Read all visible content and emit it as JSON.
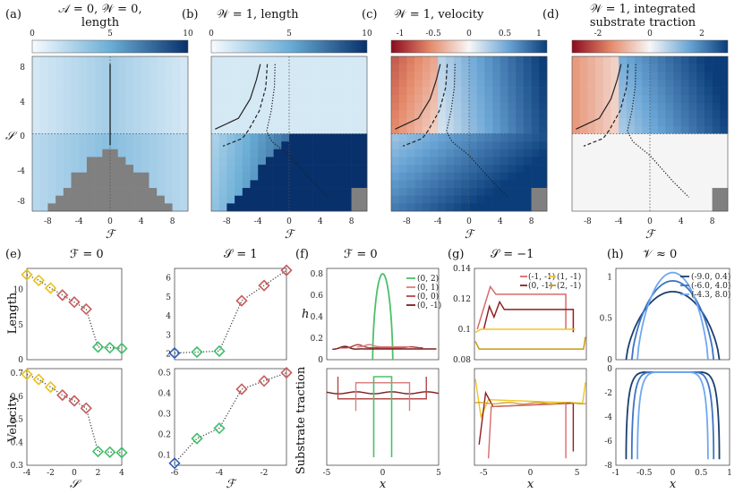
{
  "colors": {
    "blue_low": "#f7fbff",
    "blue_high": "#08306b",
    "red_high": "#67001f",
    "neutral": "#f5f5f5",
    "gray_region": "#808080",
    "yellow": "#e8c21a",
    "red": "#c95c5c",
    "green": "#3fbf6a",
    "blue": "#2f5fbf",
    "f_green": "#4cc06a",
    "f_red1": "#d98080",
    "f_red2": "#b34848",
    "f_red3": "#7a1e1e",
    "g_red1": "#d96a6a",
    "g_red2": "#8f1f1f",
    "g_yel1": "#f0c520",
    "g_yel2": "#c99a10",
    "h_1": "#1b3f6e",
    "h_2": "#3e74c4",
    "h_3": "#6fa8f0"
  },
  "chart_data": [
    {
      "id": "a",
      "type": "heatmap",
      "panel_label": "(a)",
      "title_lines": [
        "𝒜 = 0, 𝒲 = 0,",
        "length"
      ],
      "colorbar": {
        "min": 0,
        "max": 10,
        "ticks": [
          "0",
          "5",
          "10"
        ]
      },
      "xlabel": "ℱ",
      "ylabel": "𝒮",
      "xlim": [
        -10,
        10
      ],
      "ylim": [
        -10,
        10
      ],
      "xticks": [
        "-8",
        "-4",
        "0",
        "4",
        "8"
      ],
      "yticks": [
        "8",
        "4",
        "0",
        "-4",
        "-8"
      ]
    },
    {
      "id": "b",
      "type": "heatmap",
      "panel_label": "(b)",
      "title_lines": [
        "𝒲 = 1, length"
      ],
      "colorbar": {
        "min": 0,
        "max": 10,
        "ticks": [
          "0",
          "5",
          "10"
        ]
      },
      "xlabel": "ℱ",
      "xlim": [
        -10,
        10
      ],
      "ylim": [
        -10,
        10
      ],
      "xticks": [
        "-8",
        "-4",
        "0",
        "4",
        "8"
      ]
    },
    {
      "id": "c",
      "type": "heatmap",
      "panel_label": "(c)",
      "title_lines": [
        "𝒲 = 1, velocity"
      ],
      "colorbar": {
        "min": -1,
        "max": 1,
        "ticks": [
          "-1",
          "-0.5",
          "0",
          "0.5",
          "1"
        ]
      },
      "xlabel": "ℱ",
      "xlim": [
        -10,
        10
      ],
      "ylim": [
        -10,
        10
      ],
      "xticks": [
        "-8",
        "-4",
        "0",
        "4",
        "8"
      ]
    },
    {
      "id": "d",
      "type": "heatmap",
      "panel_label": "(d)",
      "title_lines": [
        "𝒲 = 1, integrated",
        "substrate traction"
      ],
      "colorbar": {
        "min": -3,
        "max": 3,
        "ticks": [
          "-2",
          "0",
          "2"
        ]
      },
      "xlabel": "ℱ",
      "xlim": [
        -10,
        10
      ],
      "ylim": [
        -10,
        10
      ],
      "xticks": [
        "-8",
        "-4",
        "0",
        "4",
        "8"
      ]
    },
    {
      "id": "e_left",
      "type": "scatter",
      "panel_label": "(e)",
      "title": "ℱ = 0",
      "x": [
        -4,
        -3,
        -2,
        -1,
        0,
        1,
        2,
        3,
        4
      ],
      "length": [
        12.1,
        11.3,
        10.2,
        9.2,
        8.2,
        7.2,
        1.8,
        1.7,
        1.6
      ],
      "velocity": [
        0.695,
        0.673,
        0.64,
        0.605,
        0.58,
        0.548,
        0.36,
        0.357,
        0.355
      ],
      "colors": [
        "yellow",
        "yellow",
        "yellow",
        "red",
        "red",
        "red",
        "green",
        "green",
        "green"
      ],
      "xlim": [
        -4,
        4
      ],
      "xlabel": "𝒮",
      "ylabel_top": "Length",
      "ylabel_bottom": "Velocity",
      "length_ylim": [
        0,
        13
      ],
      "velocity_ylim": [
        0.3,
        0.72
      ],
      "xticks": [
        "-4",
        "-2",
        "0",
        "2",
        "4"
      ],
      "length_yticks": [
        "10",
        "5",
        "0"
      ],
      "velocity_yticks": [
        "0.7",
        "0.6",
        "0.5",
        "0.4",
        "0.3"
      ]
    },
    {
      "id": "e_right",
      "type": "scatter",
      "title": "𝒮 = 1",
      "x": [
        -6,
        -5,
        -4,
        -3,
        -2,
        -1
      ],
      "length": [
        2.05,
        2.1,
        2.15,
        4.8,
        5.6,
        6.4
      ],
      "velocity": [
        0.06,
        0.18,
        0.23,
        0.42,
        0.46,
        0.5
      ],
      "colors": [
        "blue",
        "green",
        "green",
        "red",
        "red",
        "red"
      ],
      "xlim": [
        -6,
        -1
      ],
      "xlabel": "ℱ",
      "length_ylim": [
        1.7,
        6.5
      ],
      "velocity_ylim": [
        0.05,
        0.52
      ],
      "xticks": [
        "-6",
        "-4",
        "-2"
      ],
      "length_yticks": [
        "6",
        "5",
        "4",
        "3",
        "2"
      ],
      "velocity_yticks": [
        "0.5",
        "0.4",
        "0.3",
        "0.2",
        "0.1"
      ]
    },
    {
      "id": "f",
      "type": "line",
      "panel_label": "(f)",
      "title": "ℱ = 0",
      "xlabel": "x",
      "ylabel_top": "h",
      "ylabel_bottom": "Substrate traction",
      "xlim": [
        -5,
        5
      ],
      "ylim_top": [
        0,
        0.85
      ],
      "xticks": [
        "-5",
        "0",
        "5"
      ],
      "yticks_top": [
        "0.8",
        "0.6",
        "0.4",
        "0.2",
        "0"
      ],
      "legend": [
        "(0, 2)",
        "(0, 1)",
        "(0, 0)",
        "(0, -1)"
      ]
    },
    {
      "id": "g",
      "type": "line",
      "panel_label": "(g)",
      "title": "𝒮 = −1",
      "xlabel": "x",
      "xlim": [
        -6,
        6
      ],
      "ylim_top": [
        0.08,
        0.14
      ],
      "xticks": [
        "-5",
        "0",
        "5"
      ],
      "yticks_top": [
        "0.14",
        "0.12",
        "0.1",
        "0.08"
      ],
      "legend": [
        "(-1, -1)",
        "(1, -1)",
        "(0, -1)",
        "(2, -1)"
      ]
    },
    {
      "id": "h",
      "type": "line",
      "panel_label": "(h)",
      "title": "𝒱 ≈ 0",
      "xlabel": "x",
      "xlim": [
        -1,
        1
      ],
      "ylim_top": [
        0,
        1.1
      ],
      "ylim_bottom": [
        -8,
        0
      ],
      "xticks": [
        "-1",
        "-0.5",
        "0",
        "0.5",
        "1"
      ],
      "yticks_top": [
        "1",
        "0.5",
        "0"
      ],
      "yticks_bottom": [
        "0",
        "-2",
        "-4",
        "-6",
        "-8"
      ],
      "legend": [
        "(-9.0, 0.4)",
        "(-6.0, 4.0)",
        "(-4.3, 8.0)"
      ]
    }
  ]
}
